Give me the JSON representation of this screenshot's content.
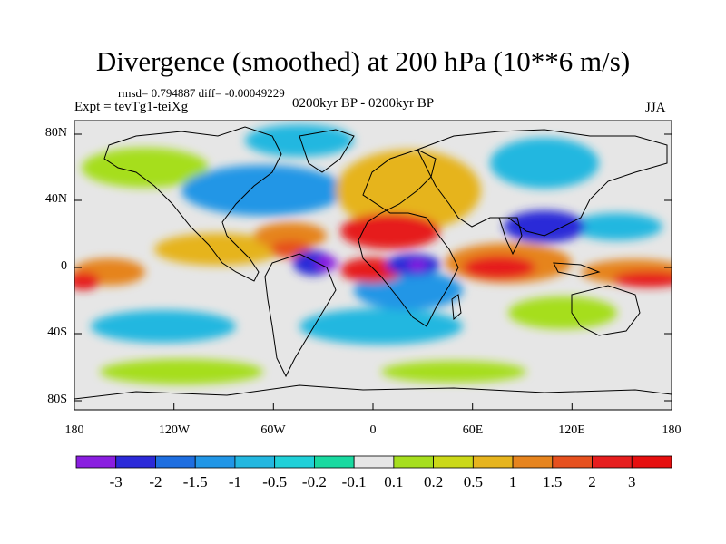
{
  "title": "Divergence (smoothed) at 200 hPa (10**6 m/s)",
  "stats": "rmsd= 0.794887 diff= -0.00049229",
  "expt": "Expt = tevTg1-teiXg",
  "period": "0200kyr BP - 0200kyr BP",
  "season": "JJA",
  "axes": {
    "y_labels": [
      "80N",
      "40N",
      "0",
      "40S",
      "80S"
    ],
    "x_labels": [
      "180",
      "120W",
      "60W",
      "0",
      "60E",
      "120E",
      "180"
    ]
  },
  "colorbar": {
    "labels": [
      "-3",
      "-2",
      "-1.5",
      "-1",
      "-0.5",
      "-0.2",
      "-0.1",
      "0.1",
      "0.2",
      "0.5",
      "1",
      "1.5",
      "2",
      "3"
    ],
    "colors": [
      "#8a1ee0",
      "#2c2ad8",
      "#1e6ee0",
      "#2196e6",
      "#23b7e0",
      "#20d0d8",
      "#19d9a0",
      "#e6e6e6",
      "#a6de1e",
      "#cbd818",
      "#e6b41e",
      "#e6841e",
      "#e6501e",
      "#e61e1e",
      "#e60f0f"
    ]
  },
  "colors": {
    "background": "#ffffff",
    "neutral_fill": "#e6e6e6",
    "coast": "#000000"
  }
}
